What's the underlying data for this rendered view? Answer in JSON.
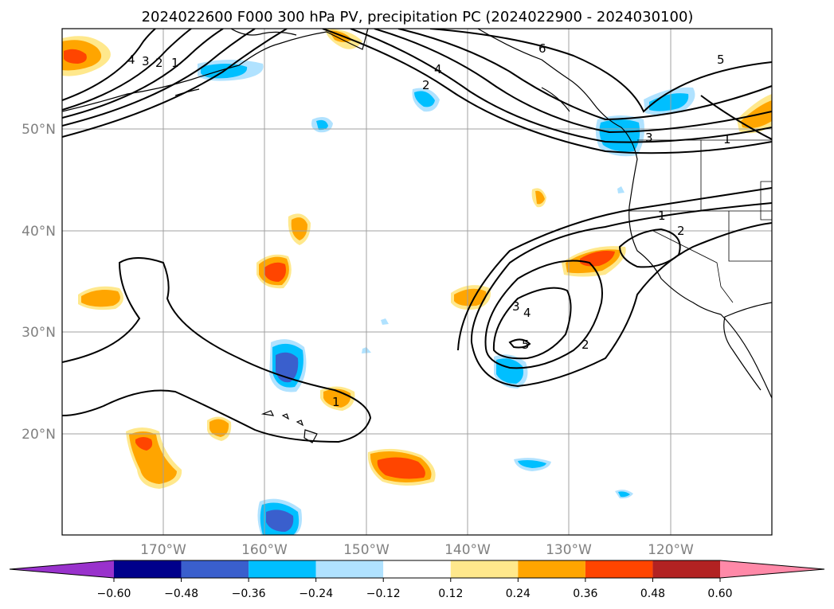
{
  "title": "2024022600 F000 300 hPa PV, precipitation PC (2024022900 - 2024030100)",
  "lat_labels": [
    "50°N",
    "40°N",
    "30°N",
    "20°N"
  ],
  "lon_labels": [
    "170°W",
    "160°W",
    "150°W",
    "140°W",
    "130°W",
    "120°W"
  ],
  "pv_contour_labels": [
    "4",
    "3",
    "2",
    "1",
    "6",
    "4",
    "2",
    "5",
    "3",
    "1",
    "1",
    "2",
    "3",
    "4",
    "5",
    "2",
    "1"
  ],
  "colorbar": {
    "ticks": [
      "−0.60",
      "−0.48",
      "−0.36",
      "−0.24",
      "−0.12",
      "0.12",
      "0.24",
      "0.36",
      "0.48",
      "0.60"
    ],
    "colors": [
      "#9932cc",
      "#00008b",
      "#3a5fcd",
      "#00bfff",
      "#b0e2ff",
      "#ffffff",
      "#ffe88c",
      "#ffa500",
      "#ff4500",
      "#b22222",
      "#ff89a8"
    ]
  }
}
